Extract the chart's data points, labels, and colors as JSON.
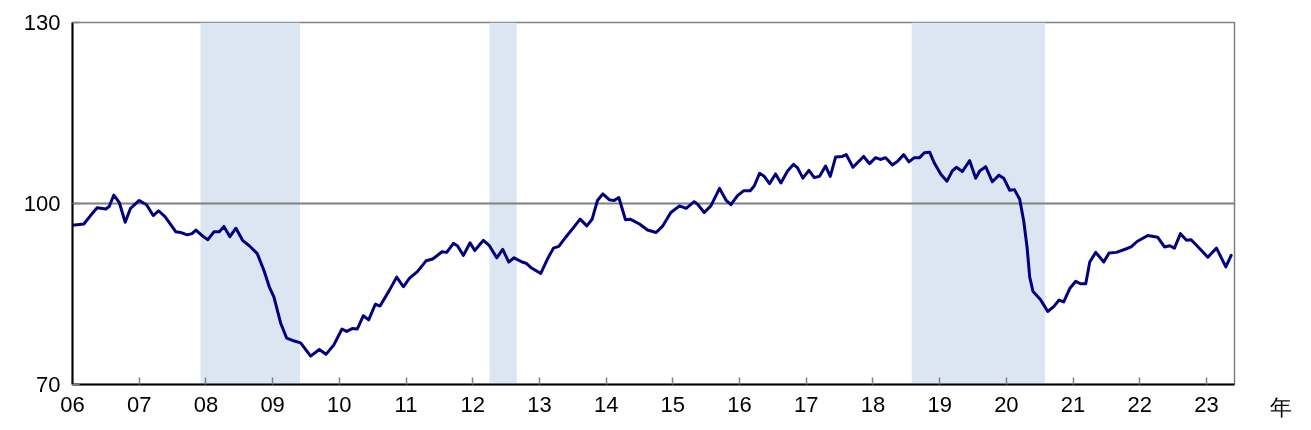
{
  "chart_data": {
    "type": "line",
    "xlabel": "年",
    "x": [
      2006.0,
      2006.17,
      2006.27,
      2006.37,
      2006.5,
      2006.55,
      2006.62,
      2006.7,
      2006.79,
      2006.87,
      2007.0,
      2007.11,
      2007.21,
      2007.29,
      2007.39,
      2007.55,
      2007.62,
      2007.72,
      2007.79,
      2007.85,
      2007.94,
      2008.03,
      2008.12,
      2008.2,
      2008.27,
      2008.36,
      2008.45,
      2008.55,
      2008.65,
      2008.77,
      2008.87,
      2008.95,
      2009.02,
      2009.12,
      2009.21,
      2009.3,
      2009.42,
      2009.57,
      2009.7,
      2009.8,
      2009.92,
      2010.04,
      2010.11,
      2010.2,
      2010.27,
      2010.36,
      2010.44,
      2010.54,
      2010.61,
      2010.75,
      2010.86,
      2010.96,
      2011.05,
      2011.17,
      2011.3,
      2011.4,
      2011.54,
      2011.61,
      2011.71,
      2011.77,
      2011.86,
      2011.96,
      2012.03,
      2012.16,
      2012.25,
      2012.36,
      2012.45,
      2012.54,
      2012.62,
      2012.74,
      2012.8,
      2012.87,
      2013.02,
      2013.12,
      2013.21,
      2013.29,
      2013.4,
      2013.51,
      2013.61,
      2013.71,
      2013.79,
      2013.87,
      2013.95,
      2014.05,
      2014.12,
      2014.19,
      2014.29,
      2014.36,
      2014.5,
      2014.62,
      2014.75,
      2014.85,
      2014.97,
      2015.1,
      2015.2,
      2015.32,
      2015.37,
      2015.47,
      2015.57,
      2015.7,
      2015.8,
      2015.87,
      2015.97,
      2016.06,
      2016.16,
      2016.22,
      2016.3,
      2016.37,
      2016.45,
      2016.54,
      2016.62,
      2016.72,
      2016.81,
      2016.87,
      2016.95,
      2017.04,
      2017.12,
      2017.2,
      2017.29,
      2017.36,
      2017.44,
      2017.54,
      2017.6,
      2017.7,
      2017.79,
      2017.86,
      2017.95,
      2018.04,
      2018.11,
      2018.19,
      2018.29,
      2018.37,
      2018.46,
      2018.54,
      2018.62,
      2018.7,
      2018.77,
      2018.85,
      2018.92,
      2019.02,
      2019.11,
      2019.19,
      2019.25,
      2019.34,
      2019.45,
      2019.54,
      2019.6,
      2019.69,
      2019.79,
      2019.89,
      2019.96,
      2020.05,
      2020.12,
      2020.2,
      2020.26,
      2020.31,
      2020.35,
      2020.4,
      2020.51,
      2020.56,
      2020.62,
      2020.71,
      2020.79,
      2020.86,
      2020.95,
      2021.04,
      2021.11,
      2021.19,
      2021.25,
      2021.34,
      2021.46,
      2021.54,
      2021.65,
      2021.8,
      2021.87,
      2021.96,
      2022.12,
      2022.27,
      2022.37,
      2022.45,
      2022.52,
      2022.61,
      2022.7,
      2022.77,
      2022.9,
      2023.02,
      2023.15,
      2023.29,
      2023.37
    ],
    "series": [
      {
        "color": "#000080",
        "values": [
          96.4,
          96.6,
          98.0,
          99.3,
          99.1,
          99.5,
          101.4,
          100.2,
          96.9,
          99.2,
          100.5,
          99.8,
          98.0,
          98.8,
          97.8,
          95.3,
          95.2,
          94.8,
          95.0,
          95.6,
          94.7,
          94.0,
          95.3,
          95.3,
          96.2,
          94.5,
          95.9,
          93.9,
          93.0,
          91.7,
          88.9,
          86.2,
          84.5,
          80.2,
          77.7,
          77.3,
          76.9,
          74.7,
          75.8,
          75.0,
          76.6,
          79.2,
          78.8,
          79.3,
          79.2,
          81.4,
          80.7,
          83.3,
          83.0,
          85.6,
          87.8,
          86.2,
          87.6,
          88.7,
          90.5,
          90.8,
          92.0,
          91.9,
          93.4,
          93.0,
          91.4,
          93.5,
          92.2,
          93.9,
          93.0,
          91.0,
          92.4,
          90.3,
          91.0,
          90.3,
          90.1,
          89.4,
          88.4,
          90.8,
          92.6,
          92.9,
          94.5,
          96.0,
          97.4,
          96.3,
          97.4,
          100.5,
          101.6,
          100.6,
          100.5,
          101.0,
          97.3,
          97.4,
          96.6,
          95.6,
          95.2,
          96.3,
          98.5,
          99.6,
          99.2,
          100.3,
          99.9,
          98.5,
          99.6,
          102.5,
          100.5,
          99.8,
          101.3,
          102.1,
          102.1,
          102.9,
          105.0,
          104.5,
          103.3,
          104.9,
          103.4,
          105.4,
          106.5,
          105.9,
          104.2,
          105.5,
          104.3,
          104.5,
          106.2,
          104.5,
          107.7,
          107.8,
          108.1,
          106.0,
          107.0,
          107.8,
          106.6,
          107.6,
          107.3,
          107.6,
          106.4,
          107.0,
          108.1,
          106.9,
          107.6,
          107.6,
          108.4,
          108.5,
          106.7,
          104.8,
          103.7,
          105.4,
          106.0,
          105.3,
          107.1,
          104.2,
          105.4,
          106.1,
          103.6,
          104.7,
          104.2,
          102.2,
          102.3,
          100.7,
          97.1,
          92.8,
          87.8,
          85.4,
          84.1,
          83.2,
          82.1,
          82.9,
          84.0,
          83.7,
          85.9,
          87.1,
          86.7,
          86.7,
          90.3,
          91.9,
          90.3,
          91.8,
          91.9,
          92.5,
          92.8,
          93.7,
          94.7,
          94.4,
          92.8,
          93.0,
          92.6,
          95.0,
          93.9,
          94.0,
          92.5,
          91.1,
          92.6,
          89.5,
          91.4
        ]
      }
    ],
    "xlim": [
      2006,
      2023.42
    ],
    "xticks": [
      {
        "value": 2006,
        "label": "06"
      },
      {
        "value": 2007,
        "label": "07"
      },
      {
        "value": 2008,
        "label": "08"
      },
      {
        "value": 2009,
        "label": "09"
      },
      {
        "value": 2010,
        "label": "10"
      },
      {
        "value": 2011,
        "label": "11"
      },
      {
        "value": 2012,
        "label": "12"
      },
      {
        "value": 2013,
        "label": "13"
      },
      {
        "value": 2014,
        "label": "14"
      },
      {
        "value": 2015,
        "label": "15"
      },
      {
        "value": 2016,
        "label": "16"
      },
      {
        "value": 2017,
        "label": "17"
      },
      {
        "value": 2018,
        "label": "18"
      },
      {
        "value": 2019,
        "label": "19"
      },
      {
        "value": 2020,
        "label": "20"
      },
      {
        "value": 2021,
        "label": "21"
      },
      {
        "value": 2022,
        "label": "22"
      },
      {
        "value": 2023,
        "label": "23"
      }
    ],
    "ylim": [
      70,
      130
    ],
    "yticks": [
      70,
      100,
      130
    ],
    "ref_lines": [
      {
        "axis": "y",
        "value": 100,
        "color": "#808080"
      }
    ],
    "bands": [
      {
        "axis": "x",
        "from": 2007.92,
        "to": 2009.41,
        "color": "#dce6f2"
      },
      {
        "axis": "x",
        "from": 2012.25,
        "to": 2012.66,
        "color": "#dce6f2"
      },
      {
        "axis": "x",
        "from": 2018.58,
        "to": 2020.58,
        "color": "#dce6f2"
      }
    ],
    "line_style": "solid"
  }
}
